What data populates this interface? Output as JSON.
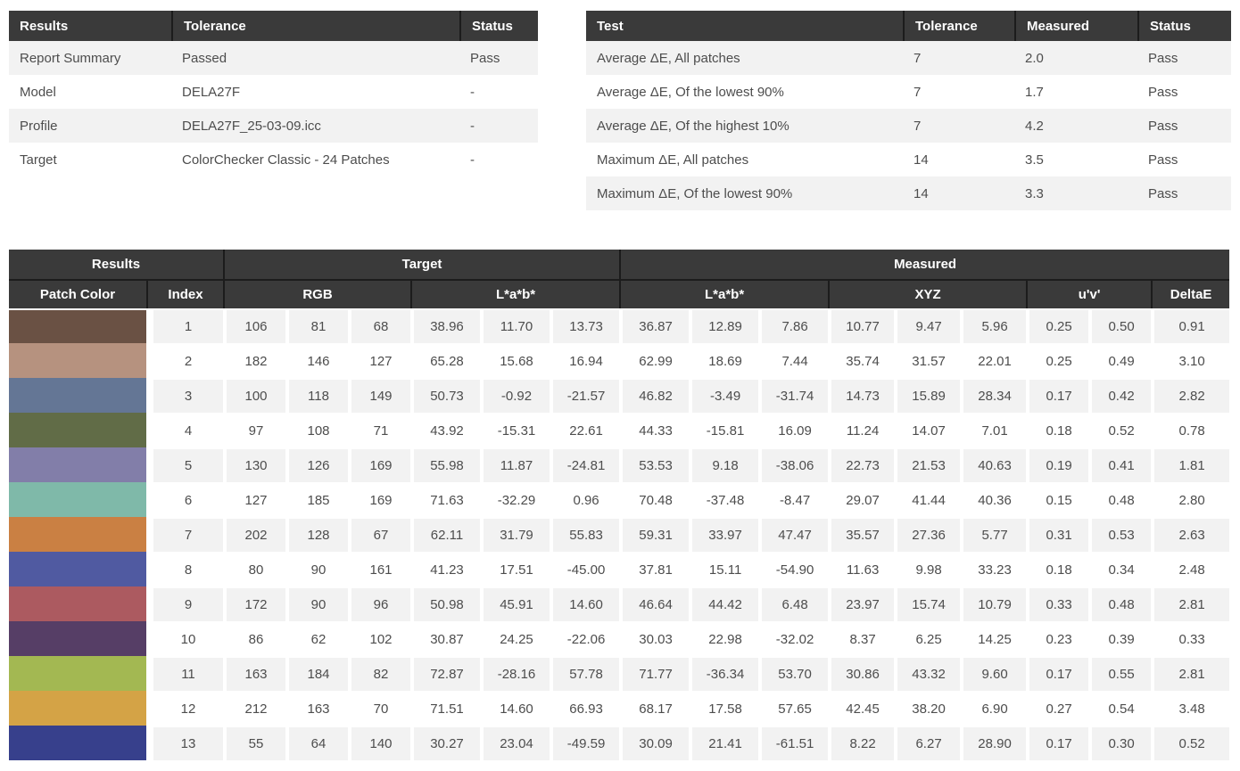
{
  "colors": {
    "header_bg": "#3a3a3a",
    "header_divider": "#1c1c1c",
    "header_text": "#ffffff",
    "row_alt_bg": "#f2f2f2",
    "body_text": "#4d4d4d"
  },
  "summary_table": {
    "headers": [
      "Results",
      "Tolerance",
      "Status"
    ],
    "rows": [
      {
        "label": "Report Summary",
        "tolerance": "Passed",
        "status": "Pass"
      },
      {
        "label": "Model",
        "tolerance": "DELA27F",
        "status": "-"
      },
      {
        "label": "Profile",
        "tolerance": "DELA27F_25-03-09.icc",
        "status": "-"
      },
      {
        "label": "Target",
        "tolerance": "ColorChecker Classic - 24 Patches",
        "status": "-"
      }
    ]
  },
  "test_table": {
    "headers": [
      "Test",
      "Tolerance",
      "Measured",
      "Status"
    ],
    "rows": [
      {
        "test": "Average ΔE, All patches",
        "tolerance": "7",
        "measured": "2.0",
        "status": "Pass"
      },
      {
        "test": "Average ΔE, Of the lowest 90%",
        "tolerance": "7",
        "measured": "1.7",
        "status": "Pass"
      },
      {
        "test": "Average ΔE, Of the highest 10%",
        "tolerance": "7",
        "measured": "4.2",
        "status": "Pass"
      },
      {
        "test": "Maximum ΔE, All patches",
        "tolerance": "14",
        "measured": "3.5",
        "status": "Pass"
      },
      {
        "test": "Maximum ΔE, Of the lowest 90%",
        "tolerance": "14",
        "measured": "3.3",
        "status": "Pass"
      }
    ]
  },
  "patch_table": {
    "group_headers": [
      "Results",
      "Target",
      "Measured"
    ],
    "sub_headers": {
      "patch_color": "Patch Color",
      "index": "Index",
      "rgb": "RGB",
      "target_lab": "L*a*b*",
      "measured_lab": "L*a*b*",
      "xyz": "XYZ",
      "uv": "u'v'",
      "delta_e": "DeltaE"
    },
    "rows": [
      {
        "index": "1",
        "rgb": [
          106,
          81,
          68
        ],
        "target_lab": [
          "38.96",
          "11.70",
          "13.73"
        ],
        "measured_lab": [
          "36.87",
          "12.89",
          "7.86"
        ],
        "xyz": [
          "10.77",
          "9.47",
          "5.96"
        ],
        "uv": [
          "0.25",
          "0.50"
        ],
        "delta_e": "0.91"
      },
      {
        "index": "2",
        "rgb": [
          182,
          146,
          127
        ],
        "target_lab": [
          "65.28",
          "15.68",
          "16.94"
        ],
        "measured_lab": [
          "62.99",
          "18.69",
          "7.44"
        ],
        "xyz": [
          "35.74",
          "31.57",
          "22.01"
        ],
        "uv": [
          "0.25",
          "0.49"
        ],
        "delta_e": "3.10"
      },
      {
        "index": "3",
        "rgb": [
          100,
          118,
          149
        ],
        "target_lab": [
          "50.73",
          "-0.92",
          "-21.57"
        ],
        "measured_lab": [
          "46.82",
          "-3.49",
          "-31.74"
        ],
        "xyz": [
          "14.73",
          "15.89",
          "28.34"
        ],
        "uv": [
          "0.17",
          "0.42"
        ],
        "delta_e": "2.82"
      },
      {
        "index": "4",
        "rgb": [
          97,
          108,
          71
        ],
        "target_lab": [
          "43.92",
          "-15.31",
          "22.61"
        ],
        "measured_lab": [
          "44.33",
          "-15.81",
          "16.09"
        ],
        "xyz": [
          "11.24",
          "14.07",
          "7.01"
        ],
        "uv": [
          "0.18",
          "0.52"
        ],
        "delta_e": "0.78"
      },
      {
        "index": "5",
        "rgb": [
          130,
          126,
          169
        ],
        "target_lab": [
          "55.98",
          "11.87",
          "-24.81"
        ],
        "measured_lab": [
          "53.53",
          "9.18",
          "-38.06"
        ],
        "xyz": [
          "22.73",
          "21.53",
          "40.63"
        ],
        "uv": [
          "0.19",
          "0.41"
        ],
        "delta_e": "1.81"
      },
      {
        "index": "6",
        "rgb": [
          127,
          185,
          169
        ],
        "target_lab": [
          "71.63",
          "-32.29",
          "0.96"
        ],
        "measured_lab": [
          "70.48",
          "-37.48",
          "-8.47"
        ],
        "xyz": [
          "29.07",
          "41.44",
          "40.36"
        ],
        "uv": [
          "0.15",
          "0.48"
        ],
        "delta_e": "2.80"
      },
      {
        "index": "7",
        "rgb": [
          202,
          128,
          67
        ],
        "target_lab": [
          "62.11",
          "31.79",
          "55.83"
        ],
        "measured_lab": [
          "59.31",
          "33.97",
          "47.47"
        ],
        "xyz": [
          "35.57",
          "27.36",
          "5.77"
        ],
        "uv": [
          "0.31",
          "0.53"
        ],
        "delta_e": "2.63"
      },
      {
        "index": "8",
        "rgb": [
          80,
          90,
          161
        ],
        "target_lab": [
          "41.23",
          "17.51",
          "-45.00"
        ],
        "measured_lab": [
          "37.81",
          "15.11",
          "-54.90"
        ],
        "xyz": [
          "11.63",
          "9.98",
          "33.23"
        ],
        "uv": [
          "0.18",
          "0.34"
        ],
        "delta_e": "2.48"
      },
      {
        "index": "9",
        "rgb": [
          172,
          90,
          96
        ],
        "target_lab": [
          "50.98",
          "45.91",
          "14.60"
        ],
        "measured_lab": [
          "46.64",
          "44.42",
          "6.48"
        ],
        "xyz": [
          "23.97",
          "15.74",
          "10.79"
        ],
        "uv": [
          "0.33",
          "0.48"
        ],
        "delta_e": "2.81"
      },
      {
        "index": "10",
        "rgb": [
          86,
          62,
          102
        ],
        "target_lab": [
          "30.87",
          "24.25",
          "-22.06"
        ],
        "measured_lab": [
          "30.03",
          "22.98",
          "-32.02"
        ],
        "xyz": [
          "8.37",
          "6.25",
          "14.25"
        ],
        "uv": [
          "0.23",
          "0.39"
        ],
        "delta_e": "0.33"
      },
      {
        "index": "11",
        "rgb": [
          163,
          184,
          82
        ],
        "target_lab": [
          "72.87",
          "-28.16",
          "57.78"
        ],
        "measured_lab": [
          "71.77",
          "-36.34",
          "53.70"
        ],
        "xyz": [
          "30.86",
          "43.32",
          "9.60"
        ],
        "uv": [
          "0.17",
          "0.55"
        ],
        "delta_e": "2.81"
      },
      {
        "index": "12",
        "rgb": [
          212,
          163,
          70
        ],
        "target_lab": [
          "71.51",
          "14.60",
          "66.93"
        ],
        "measured_lab": [
          "68.17",
          "17.58",
          "57.65"
        ],
        "xyz": [
          "42.45",
          "38.20",
          "6.90"
        ],
        "uv": [
          "0.27",
          "0.54"
        ],
        "delta_e": "3.48"
      },
      {
        "index": "13",
        "rgb": [
          55,
          64,
          140
        ],
        "target_lab": [
          "30.27",
          "23.04",
          "-49.59"
        ],
        "measured_lab": [
          "30.09",
          "21.41",
          "-61.51"
        ],
        "xyz": [
          "8.22",
          "6.27",
          "28.90"
        ],
        "uv": [
          "0.17",
          "0.30"
        ],
        "delta_e": "0.52"
      }
    ]
  }
}
